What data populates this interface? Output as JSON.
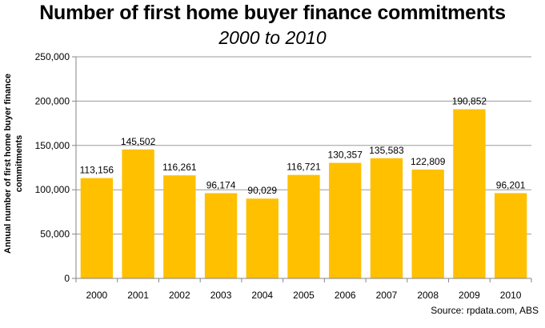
{
  "chart_data": {
    "type": "bar",
    "title": "Number of first home buyer finance commitments",
    "subtitle": "2000 to 2010",
    "ylabel_lines": [
      "Annual number of first home buyer finance",
      "commitments"
    ],
    "xlabel": "",
    "categories": [
      "2000",
      "2001",
      "2002",
      "2003",
      "2004",
      "2005",
      "2006",
      "2007",
      "2008",
      "2009",
      "2010"
    ],
    "values": [
      113156,
      145502,
      116261,
      96174,
      90029,
      116721,
      130357,
      135583,
      122809,
      190852,
      96201
    ],
    "data_labels": [
      "113,156",
      "145,502",
      "116,261",
      "96,174",
      "90,029",
      "116,721",
      "130,357",
      "135,583",
      "122,809",
      "190,852",
      "96,201"
    ],
    "ylim": [
      0,
      250000
    ],
    "yticks": [
      0,
      50000,
      100000,
      150000,
      200000,
      250000
    ],
    "ytick_labels": [
      "0",
      "50,000",
      "100,000",
      "150,000",
      "200,000",
      "250,000"
    ],
    "grid": true,
    "bar_color": "#FFC000",
    "source": "Source: rpdata.com, ABS"
  }
}
